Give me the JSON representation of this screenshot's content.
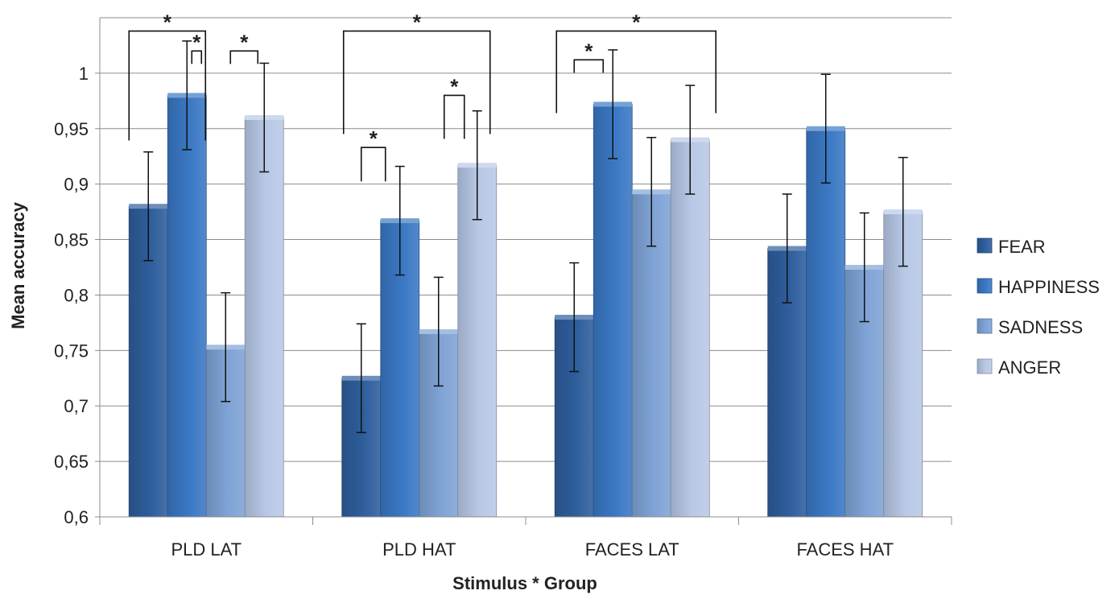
{
  "chart_data": {
    "type": "bar",
    "title": "",
    "xlabel": "Stimulus * Group",
    "ylabel": "Mean accuracy",
    "ylim": [
      0.6,
      1.05
    ],
    "yticks": [
      "0,6",
      "0,65",
      "0,7",
      "0,75",
      "0,8",
      "0,85",
      "0,9",
      "0,95",
      "1"
    ],
    "ytick_values": [
      0.6,
      0.65,
      0.7,
      0.75,
      0.8,
      0.85,
      0.9,
      0.95,
      1.0
    ],
    "grid": true,
    "legend_position": "right",
    "categories": [
      "PLD LAT",
      "PLD HAT",
      "FACES LAT",
      "FACES HAT"
    ],
    "series": [
      {
        "name": "FEAR",
        "color": "#2E5E9C",
        "values": [
          0.88,
          0.725,
          0.78,
          0.842
        ],
        "errors": [
          0.049,
          0.049,
          0.049,
          0.049
        ]
      },
      {
        "name": "HAPPINESS",
        "color": "#3A78C4",
        "values": [
          0.98,
          0.867,
          0.972,
          0.95
        ],
        "errors": [
          0.049,
          0.049,
          0.049,
          0.049
        ]
      },
      {
        "name": "SADNESS",
        "color": "#7FA3D6",
        "values": [
          0.753,
          0.767,
          0.893,
          0.825
        ],
        "errors": [
          0.049,
          0.049,
          0.049,
          0.049
        ]
      },
      {
        "name": "ANGER",
        "color": "#B8C8E6",
        "values": [
          0.96,
          0.917,
          0.94,
          0.875
        ],
        "errors": [
          0.049,
          0.049,
          0.049,
          0.049
        ]
      }
    ],
    "significance": [
      {
        "category": 0,
        "from": 0,
        "to": 2,
        "level": 1.038,
        "label": "*"
      },
      {
        "category": 0,
        "from": 1,
        "to": 2,
        "level": 1.02,
        "label": "*"
      },
      {
        "category": 0,
        "from": 2,
        "to": 3,
        "level": 1.02,
        "label": "*"
      },
      {
        "category": 1,
        "from": 0,
        "to": 3,
        "level": 1.038,
        "label": "*"
      },
      {
        "category": 1,
        "from": 0,
        "to": 0,
        "level": 0.933,
        "label": "*",
        "short": true
      },
      {
        "category": 1,
        "from": 2,
        "to": 2,
        "level": 0.98,
        "label": "*",
        "short": true
      },
      {
        "category": 2,
        "from": 0,
        "to": 3,
        "level": 1.038,
        "label": "*"
      },
      {
        "category": 2,
        "from": 0,
        "to": 0,
        "level": 1.012,
        "label": "*",
        "short": true
      }
    ]
  }
}
